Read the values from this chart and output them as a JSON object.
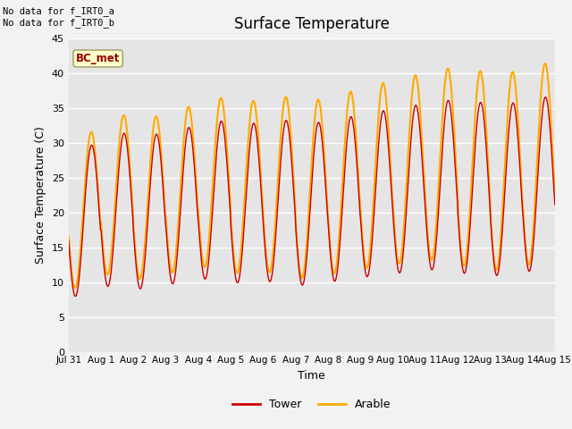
{
  "title": "Surface Temperature",
  "xlabel": "Time",
  "ylabel": "Surface Temperature (C)",
  "ylim": [
    0,
    45
  ],
  "yticks": [
    0,
    5,
    10,
    15,
    20,
    25,
    30,
    35,
    40,
    45
  ],
  "x_tick_labels": [
    "Jul 31",
    "Aug 1",
    "Aug 2",
    "Aug 3",
    "Aug 4",
    "Aug 5",
    "Aug 6",
    "Aug 7",
    "Aug 8",
    "Aug 9",
    "Aug 10",
    "Aug 11",
    "Aug 12",
    "Aug 13",
    "Aug 14",
    "Aug 15"
  ],
  "annotation_text": "No data for f_IRT0_a\nNo data for f_IRT0_b",
  "bc_met_label": "BC_met",
  "legend_entries": [
    "Tower",
    "Arable"
  ],
  "tower_color": "#cc0000",
  "arable_color": "#ffaa00",
  "bg_color": "#e5e5e5",
  "grid_color": "#ffffff",
  "bc_met_bg": "#ffffcc",
  "bc_met_fg": "#990000",
  "fig_bg": "#f2f2f2"
}
